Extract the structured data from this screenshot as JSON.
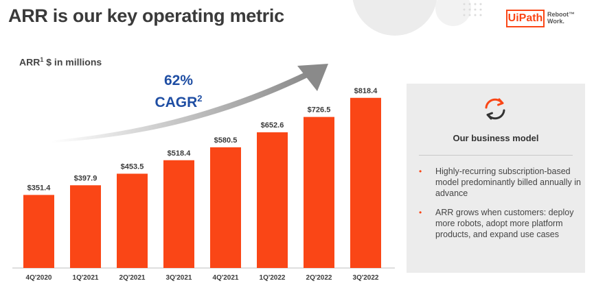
{
  "slide": {
    "title": "ARR is our key operating metric",
    "subtitle_main": "ARR",
    "subtitle_sup": "1",
    "subtitle_rest": " $ in millions",
    "cagr_value": "62%",
    "cagr_label": "CAGR",
    "cagr_sup": "2"
  },
  "logo": {
    "brand": "UiPath",
    "tagline_1": "Reboot",
    "tagline_2": "Work.",
    "tm": "™",
    "accent": "#fa4616"
  },
  "panel": {
    "icon": "refresh-cycle-icon",
    "heading": "Our business model",
    "bullets": [
      "Highly-recurring subscription-based model predominantly billed annually in advance",
      "ARR grows when customers: deploy more robots, adopt more platform products, and expand use cases"
    ]
  },
  "chart_data": {
    "type": "bar",
    "title": "",
    "xlabel": "",
    "ylabel": "",
    "categories": [
      "4Q'2020",
      "1Q'2021",
      "2Q'2021",
      "3Q'2021",
      "4Q'2021",
      "1Q'2022",
      "2Q'2022",
      "3Q'2022"
    ],
    "values": [
      351.4,
      397.9,
      453.5,
      518.4,
      580.5,
      652.6,
      726.5,
      818.4
    ],
    "value_labels": [
      "$351.4",
      "$397.9",
      "$453.5",
      "$518.4",
      "$580.5",
      "$652.6",
      "$726.5",
      "$818.4"
    ],
    "ylim": [
      0,
      900
    ],
    "grid": false,
    "bar_color": "#fa4616",
    "arrow_color": "#8a8a8a"
  }
}
